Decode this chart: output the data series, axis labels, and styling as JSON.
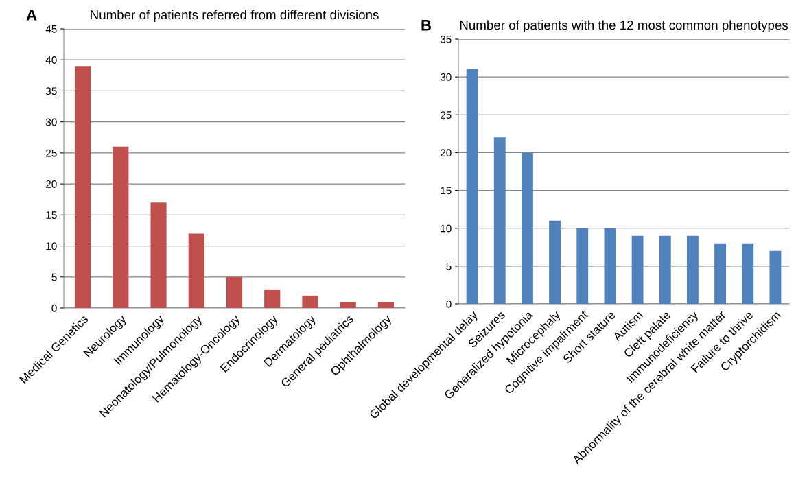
{
  "chart_data": [
    {
      "type": "bar",
      "title": "Number of patients referred from different divisions",
      "annotations": [
        "A"
      ],
      "categories": [
        "Medical Genetics",
        "Neurology",
        "Immunology",
        "Neonatology/Pulmonology",
        "Hematology-Oncology",
        "Endocrinology",
        "Dermatology",
        "General pediatrics",
        "Ophthalmology"
      ],
      "values": [
        39,
        26,
        17,
        12,
        5,
        3,
        2,
        1,
        1
      ],
      "color": "#c0504d",
      "ylim": [
        0,
        45
      ],
      "yticks": [
        0,
        5,
        10,
        15,
        20,
        25,
        30,
        35,
        40,
        45
      ],
      "grid": "y",
      "legend": false
    },
    {
      "type": "bar",
      "title": "Number of patients with the 12 most common phenotypes",
      "annotations": [
        "B"
      ],
      "categories": [
        "Global developmental delay",
        "Seizures",
        "Generalized hypotonia",
        "Microcephaly",
        "Cognitive impairment",
        "Short stature",
        "Autism",
        "Cleft palate",
        "Immunodeficiency",
        "Abnormality of the cerebral white matter",
        "Failure to thrive",
        "Cryptorchidism"
      ],
      "values": [
        31,
        22,
        20,
        11,
        10,
        10,
        9,
        9,
        9,
        8,
        8,
        7
      ],
      "color": "#4f81bd",
      "ylim": [
        0,
        35
      ],
      "yticks": [
        0,
        5,
        10,
        15,
        20,
        25,
        30,
        35
      ],
      "grid": "y",
      "legend": false
    }
  ]
}
